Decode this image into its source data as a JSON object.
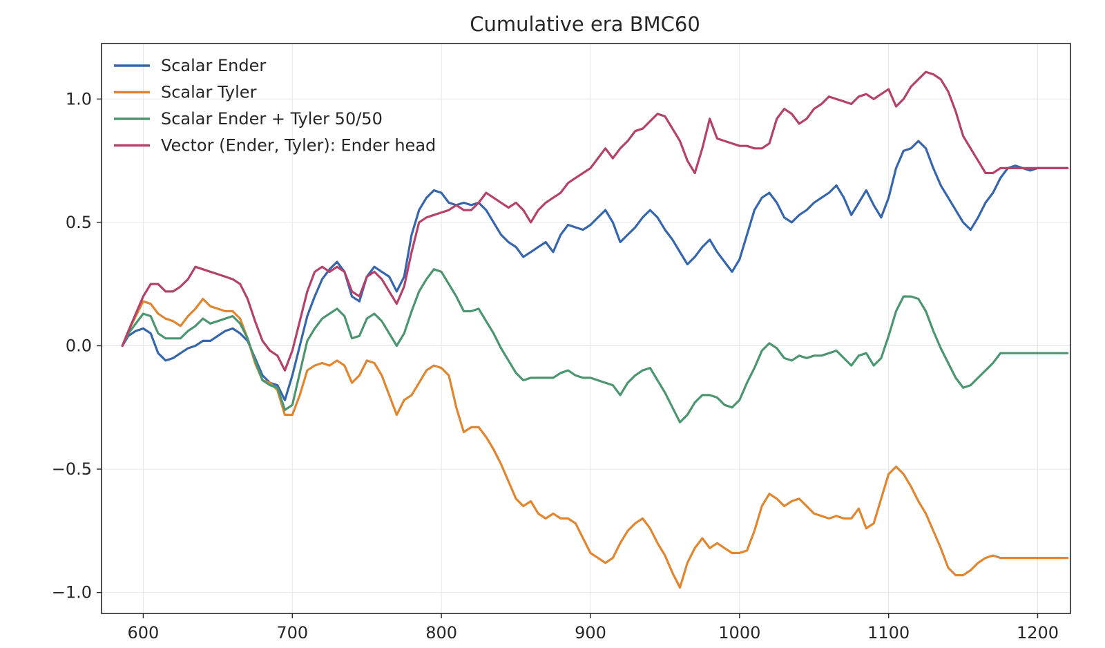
{
  "chart_data": {
    "type": "line",
    "title": "Cumulative era BMC60",
    "xlabel": "",
    "ylabel": "",
    "xlim": [
      572,
      1222
    ],
    "ylim": [
      -1.085,
      1.225
    ],
    "xticks": [
      600,
      700,
      800,
      900,
      1000,
      1100,
      1200
    ],
    "xtick_labels": [
      "600",
      "700",
      "800",
      "900",
      "1000",
      "1100",
      "1200"
    ],
    "yticks": [
      1.0,
      0.5,
      0.0,
      -0.5,
      -1.0
    ],
    "ytick_labels": [
      "1.0",
      "0.5",
      "0.0",
      "−0.5",
      "−1.0"
    ],
    "grid": true,
    "legend_position": "upper-left",
    "series": [
      {
        "name": "Scalar Ender",
        "color": "#3465ad",
        "x": [
          586,
          590,
          595,
          600,
          605,
          610,
          615,
          620,
          625,
          630,
          635,
          640,
          645,
          650,
          655,
          660,
          665,
          670,
          675,
          680,
          685,
          690,
          695,
          700,
          705,
          710,
          715,
          720,
          725,
          730,
          735,
          740,
          745,
          750,
          755,
          760,
          765,
          770,
          775,
          780,
          785,
          790,
          795,
          800,
          805,
          810,
          815,
          820,
          825,
          830,
          835,
          840,
          845,
          850,
          855,
          860,
          865,
          870,
          875,
          880,
          885,
          890,
          895,
          900,
          905,
          910,
          915,
          920,
          925,
          930,
          935,
          940,
          945,
          950,
          955,
          960,
          965,
          970,
          975,
          980,
          985,
          990,
          995,
          1000,
          1005,
          1010,
          1015,
          1020,
          1025,
          1030,
          1035,
          1040,
          1045,
          1050,
          1055,
          1060,
          1065,
          1070,
          1075,
          1080,
          1085,
          1090,
          1095,
          1100,
          1105,
          1110,
          1115,
          1120,
          1125,
          1130,
          1135,
          1140,
          1145,
          1150,
          1155,
          1160,
          1165,
          1170,
          1175,
          1180,
          1185,
          1190,
          1195,
          1200,
          1205,
          1210,
          1215,
          1220
        ],
        "y": [
          0.0,
          0.04,
          0.06,
          0.07,
          0.05,
          -0.03,
          -0.06,
          -0.05,
          -0.03,
          -0.01,
          0.0,
          0.02,
          0.02,
          0.04,
          0.06,
          0.07,
          0.05,
          0.02,
          -0.05,
          -0.12,
          -0.15,
          -0.16,
          -0.22,
          -0.12,
          0.0,
          0.12,
          0.2,
          0.27,
          0.31,
          0.34,
          0.3,
          0.2,
          0.18,
          0.28,
          0.32,
          0.3,
          0.28,
          0.22,
          0.28,
          0.45,
          0.55,
          0.6,
          0.63,
          0.62,
          0.58,
          0.57,
          0.58,
          0.57,
          0.58,
          0.55,
          0.5,
          0.45,
          0.42,
          0.4,
          0.36,
          0.38,
          0.4,
          0.42,
          0.38,
          0.45,
          0.49,
          0.48,
          0.47,
          0.49,
          0.52,
          0.55,
          0.5,
          0.42,
          0.45,
          0.48,
          0.52,
          0.55,
          0.52,
          0.47,
          0.43,
          0.38,
          0.33,
          0.36,
          0.4,
          0.43,
          0.38,
          0.34,
          0.3,
          0.35,
          0.45,
          0.55,
          0.6,
          0.62,
          0.58,
          0.52,
          0.5,
          0.53,
          0.55,
          0.58,
          0.6,
          0.62,
          0.65,
          0.6,
          0.53,
          0.58,
          0.63,
          0.57,
          0.52,
          0.6,
          0.72,
          0.79,
          0.8,
          0.83,
          0.8,
          0.72,
          0.65,
          0.6,
          0.55,
          0.5,
          0.47,
          0.52,
          0.58,
          0.62,
          0.68,
          0.72,
          0.73,
          0.72,
          0.71,
          0.72,
          0.72,
          0.72,
          0.72,
          0.72
        ]
      },
      {
        "name": "Scalar Tyler",
        "color": "#e1862f",
        "x": [
          586,
          590,
          595,
          600,
          605,
          610,
          615,
          620,
          625,
          630,
          635,
          640,
          645,
          650,
          655,
          660,
          665,
          670,
          675,
          680,
          685,
          690,
          695,
          700,
          705,
          710,
          715,
          720,
          725,
          730,
          735,
          740,
          745,
          750,
          755,
          760,
          765,
          770,
          775,
          780,
          785,
          790,
          795,
          800,
          805,
          810,
          815,
          820,
          825,
          830,
          835,
          840,
          845,
          850,
          855,
          860,
          865,
          870,
          875,
          880,
          885,
          890,
          895,
          900,
          905,
          910,
          915,
          920,
          925,
          930,
          935,
          940,
          945,
          950,
          955,
          960,
          965,
          970,
          975,
          980,
          985,
          990,
          995,
          1000,
          1005,
          1010,
          1015,
          1020,
          1025,
          1030,
          1035,
          1040,
          1045,
          1050,
          1055,
          1060,
          1065,
          1070,
          1075,
          1080,
          1085,
          1090,
          1095,
          1100,
          1105,
          1110,
          1115,
          1120,
          1125,
          1130,
          1135,
          1140,
          1145,
          1150,
          1155,
          1160,
          1165,
          1170,
          1175,
          1180,
          1185,
          1190,
          1195,
          1200,
          1205,
          1210,
          1215,
          1220
        ],
        "y": [
          0.0,
          0.06,
          0.12,
          0.18,
          0.17,
          0.13,
          0.11,
          0.1,
          0.08,
          0.12,
          0.15,
          0.19,
          0.16,
          0.15,
          0.14,
          0.14,
          0.11,
          0.03,
          -0.07,
          -0.14,
          -0.15,
          -0.18,
          -0.28,
          -0.28,
          -0.2,
          -0.1,
          -0.08,
          -0.07,
          -0.08,
          -0.06,
          -0.08,
          -0.15,
          -0.12,
          -0.06,
          -0.07,
          -0.12,
          -0.2,
          -0.28,
          -0.22,
          -0.2,
          -0.15,
          -0.1,
          -0.08,
          -0.09,
          -0.12,
          -0.25,
          -0.35,
          -0.33,
          -0.33,
          -0.37,
          -0.42,
          -0.48,
          -0.55,
          -0.62,
          -0.65,
          -0.63,
          -0.68,
          -0.7,
          -0.68,
          -0.7,
          -0.7,
          -0.72,
          -0.78,
          -0.84,
          -0.86,
          -0.88,
          -0.86,
          -0.8,
          -0.75,
          -0.72,
          -0.7,
          -0.74,
          -0.8,
          -0.85,
          -0.92,
          -0.98,
          -0.88,
          -0.82,
          -0.78,
          -0.82,
          -0.8,
          -0.82,
          -0.84,
          -0.84,
          -0.83,
          -0.75,
          -0.65,
          -0.6,
          -0.62,
          -0.65,
          -0.63,
          -0.62,
          -0.65,
          -0.68,
          -0.69,
          -0.7,
          -0.69,
          -0.7,
          -0.7,
          -0.66,
          -0.74,
          -0.72,
          -0.62,
          -0.52,
          -0.49,
          -0.52,
          -0.57,
          -0.63,
          -0.68,
          -0.75,
          -0.82,
          -0.9,
          -0.93,
          -0.93,
          -0.91,
          -0.88,
          -0.86,
          -0.85,
          -0.86,
          -0.86,
          -0.86,
          -0.86,
          -0.86,
          -0.86,
          -0.86,
          -0.86,
          -0.86,
          -0.86
        ]
      },
      {
        "name": "Scalar Ender + Tyler 50/50",
        "color": "#4b9670",
        "x": [
          586,
          590,
          595,
          600,
          605,
          610,
          615,
          620,
          625,
          630,
          635,
          640,
          645,
          650,
          655,
          660,
          665,
          670,
          675,
          680,
          685,
          690,
          695,
          700,
          705,
          710,
          715,
          720,
          725,
          730,
          735,
          740,
          745,
          750,
          755,
          760,
          765,
          770,
          775,
          780,
          785,
          790,
          795,
          800,
          805,
          810,
          815,
          820,
          825,
          830,
          835,
          840,
          845,
          850,
          855,
          860,
          865,
          870,
          875,
          880,
          885,
          890,
          895,
          900,
          905,
          910,
          915,
          920,
          925,
          930,
          935,
          940,
          945,
          950,
          955,
          960,
          965,
          970,
          975,
          980,
          985,
          990,
          995,
          1000,
          1005,
          1010,
          1015,
          1020,
          1025,
          1030,
          1035,
          1040,
          1045,
          1050,
          1055,
          1060,
          1065,
          1070,
          1075,
          1080,
          1085,
          1090,
          1095,
          1100,
          1105,
          1110,
          1115,
          1120,
          1125,
          1130,
          1135,
          1140,
          1145,
          1150,
          1155,
          1160,
          1165,
          1170,
          1175,
          1180,
          1185,
          1190,
          1195,
          1200,
          1205,
          1210,
          1215,
          1220
        ],
        "y": [
          0.0,
          0.05,
          0.09,
          0.13,
          0.12,
          0.05,
          0.03,
          0.03,
          0.03,
          0.06,
          0.08,
          0.11,
          0.09,
          0.1,
          0.11,
          0.12,
          0.09,
          0.03,
          -0.06,
          -0.14,
          -0.16,
          -0.17,
          -0.26,
          -0.24,
          -0.11,
          0.02,
          0.07,
          0.11,
          0.13,
          0.15,
          0.12,
          0.03,
          0.04,
          0.11,
          0.13,
          0.1,
          0.05,
          0.0,
          0.05,
          0.14,
          0.22,
          0.27,
          0.31,
          0.3,
          0.25,
          0.2,
          0.14,
          0.14,
          0.15,
          0.1,
          0.05,
          -0.01,
          -0.06,
          -0.11,
          -0.14,
          -0.13,
          -0.13,
          -0.13,
          -0.13,
          -0.11,
          -0.1,
          -0.12,
          -0.13,
          -0.13,
          -0.14,
          -0.15,
          -0.16,
          -0.2,
          -0.15,
          -0.12,
          -0.1,
          -0.09,
          -0.14,
          -0.19,
          -0.25,
          -0.31,
          -0.28,
          -0.23,
          -0.2,
          -0.2,
          -0.21,
          -0.24,
          -0.25,
          -0.22,
          -0.15,
          -0.09,
          -0.02,
          0.01,
          -0.01,
          -0.05,
          -0.06,
          -0.04,
          -0.05,
          -0.04,
          -0.04,
          -0.03,
          -0.02,
          -0.05,
          -0.08,
          -0.04,
          -0.03,
          -0.08,
          -0.05,
          0.04,
          0.14,
          0.2,
          0.2,
          0.19,
          0.14,
          0.06,
          -0.01,
          -0.07,
          -0.13,
          -0.17,
          -0.16,
          -0.13,
          -0.1,
          -0.07,
          -0.03,
          -0.03,
          -0.03,
          -0.03,
          -0.03,
          -0.03,
          -0.03,
          -0.03,
          -0.03,
          -0.03
        ]
      },
      {
        "name": "Vector (Ender, Tyler): Ender head",
        "color": "#b5416a",
        "x": [
          586,
          590,
          595,
          600,
          605,
          610,
          615,
          620,
          625,
          630,
          635,
          640,
          645,
          650,
          655,
          660,
          665,
          670,
          675,
          680,
          685,
          690,
          695,
          700,
          705,
          710,
          715,
          720,
          725,
          730,
          735,
          740,
          745,
          750,
          755,
          760,
          765,
          770,
          775,
          780,
          785,
          790,
          795,
          800,
          805,
          810,
          815,
          820,
          825,
          830,
          835,
          840,
          845,
          850,
          855,
          860,
          865,
          870,
          875,
          880,
          885,
          890,
          895,
          900,
          905,
          910,
          915,
          920,
          925,
          930,
          935,
          940,
          945,
          950,
          955,
          960,
          965,
          970,
          975,
          980,
          985,
          990,
          995,
          1000,
          1005,
          1010,
          1015,
          1020,
          1025,
          1030,
          1035,
          1040,
          1045,
          1050,
          1055,
          1060,
          1065,
          1070,
          1075,
          1080,
          1085,
          1090,
          1095,
          1100,
          1105,
          1110,
          1115,
          1120,
          1125,
          1130,
          1135,
          1140,
          1145,
          1150,
          1155,
          1160,
          1165,
          1170,
          1175,
          1180,
          1185,
          1190,
          1195,
          1200,
          1205,
          1210,
          1215,
          1220
        ],
        "y": [
          0.0,
          0.06,
          0.13,
          0.2,
          0.25,
          0.25,
          0.22,
          0.22,
          0.24,
          0.27,
          0.32,
          0.31,
          0.3,
          0.29,
          0.28,
          0.27,
          0.25,
          0.19,
          0.1,
          0.02,
          -0.02,
          -0.04,
          -0.1,
          -0.02,
          0.1,
          0.22,
          0.3,
          0.32,
          0.3,
          0.32,
          0.3,
          0.22,
          0.2,
          0.28,
          0.3,
          0.27,
          0.22,
          0.17,
          0.24,
          0.38,
          0.5,
          0.52,
          0.53,
          0.54,
          0.55,
          0.57,
          0.55,
          0.55,
          0.58,
          0.62,
          0.6,
          0.58,
          0.56,
          0.58,
          0.55,
          0.5,
          0.55,
          0.58,
          0.6,
          0.62,
          0.66,
          0.68,
          0.7,
          0.72,
          0.76,
          0.8,
          0.76,
          0.8,
          0.83,
          0.87,
          0.88,
          0.91,
          0.94,
          0.93,
          0.88,
          0.83,
          0.75,
          0.7,
          0.8,
          0.92,
          0.84,
          0.83,
          0.82,
          0.81,
          0.81,
          0.8,
          0.8,
          0.82,
          0.92,
          0.96,
          0.94,
          0.9,
          0.92,
          0.96,
          0.98,
          1.01,
          1.0,
          0.99,
          0.98,
          1.01,
          1.02,
          1.0,
          1.02,
          1.04,
          0.97,
          1.0,
          1.05,
          1.08,
          1.11,
          1.1,
          1.08,
          1.03,
          0.95,
          0.85,
          0.8,
          0.75,
          0.7,
          0.7,
          0.72,
          0.72,
          0.72,
          0.72,
          0.72,
          0.72,
          0.72,
          0.72,
          0.72,
          0.72
        ]
      }
    ]
  }
}
